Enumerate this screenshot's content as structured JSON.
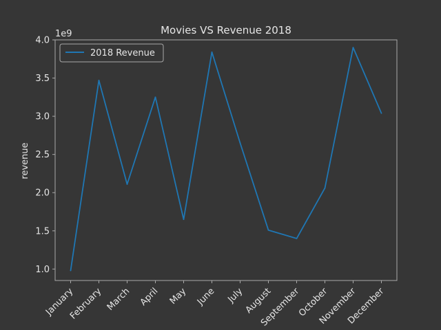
{
  "chart_data": {
    "type": "line",
    "title": "Movies VS Revenue 2018",
    "xlabel": "",
    "ylabel": "revenue",
    "y_multiplier_label": "1e9",
    "categories": [
      "January",
      "February",
      "March",
      "April",
      "May",
      "June",
      "July",
      "August",
      "September",
      "October",
      "November",
      "December"
    ],
    "series": [
      {
        "name": "2018 Revenue",
        "color": "#1f77b4",
        "values": [
          980000000,
          3470000000,
          2110000000,
          3250000000,
          1650000000,
          3840000000,
          2650000000,
          1510000000,
          1400000000,
          2060000000,
          3900000000,
          3040000000
        ]
      }
    ],
    "ylim": [
      850000000,
      4000000000
    ],
    "yticks": [
      1.0,
      1.5,
      2.0,
      2.5,
      3.0,
      3.5,
      4.0
    ],
    "ytick_labels": [
      "1.0",
      "1.5",
      "2.0",
      "2.5",
      "3.0",
      "3.5",
      "4.0"
    ],
    "grid": false,
    "legend_position": "top-left"
  },
  "colors": {
    "background": "#363636",
    "axes": "#aaaaaa",
    "text": "#e6e6e6"
  }
}
